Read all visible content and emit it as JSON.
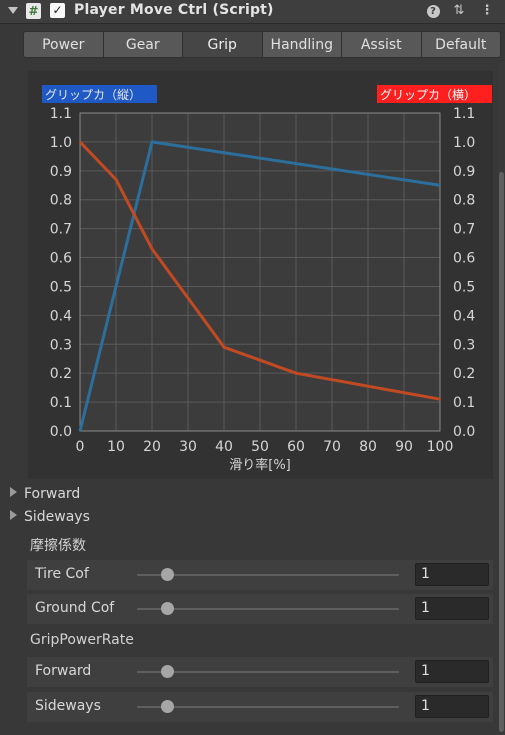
{
  "header": {
    "title": "Player Move Ctrl (Script)",
    "script_icon": "#",
    "enabled_check": "✓",
    "help_icon_glyph": "?",
    "preset_icon_glyph": "⇅",
    "menu_icon_glyph": "⋮"
  },
  "tabs": [
    {
      "label": "Power",
      "active": false
    },
    {
      "label": "Gear",
      "active": false
    },
    {
      "label": "Grip",
      "active": true
    },
    {
      "label": "Handling",
      "active": false
    },
    {
      "label": "Assist",
      "active": false
    },
    {
      "label": "Default",
      "active": false
    }
  ],
  "chart_data": {
    "type": "line",
    "title": "",
    "xlabel": "滑り率[%]",
    "ylabel": "",
    "xlim": [
      0,
      100
    ],
    "ylim": [
      0,
      1.1
    ],
    "x_ticks": [
      "0",
      "10",
      "20",
      "30",
      "40",
      "50",
      "60",
      "70",
      "80",
      "90",
      "100"
    ],
    "y_ticks": [
      "0.0",
      "0.1",
      "0.2",
      "0.3",
      "0.4",
      "0.5",
      "0.6",
      "0.7",
      "0.8",
      "0.9",
      "1.0",
      "1.1"
    ],
    "grid": true,
    "legend_left": {
      "label": "グリップカ（縦）",
      "color": "#1f59c6"
    },
    "legend_right": {
      "label": "グリップカ（横）",
      "color": "#ff1f1f"
    },
    "series": [
      {
        "name": "グリップカ（縦）",
        "color": "#2d6f9c",
        "x": [
          0,
          20,
          100
        ],
        "y": [
          0.0,
          1.0,
          0.85
        ]
      },
      {
        "name": "グリップカ（横）",
        "color": "#c24a22",
        "x": [
          0,
          10,
          20,
          40,
          60,
          100
        ],
        "y": [
          1.0,
          0.87,
          0.63,
          0.29,
          0.2,
          0.11
        ]
      }
    ]
  },
  "foldouts": {
    "forward": "Forward",
    "sideways": "Sideways"
  },
  "friction": {
    "title": "摩擦係数",
    "tire": {
      "label": "Tire Cof",
      "value": "1"
    },
    "ground": {
      "label": "Ground Cof",
      "value": "1"
    }
  },
  "grip_power_rate": {
    "title": "GripPowerRate",
    "forward": {
      "label": "Forward",
      "value": "1"
    },
    "sideways": {
      "label": "Sideways",
      "value": "1"
    }
  }
}
